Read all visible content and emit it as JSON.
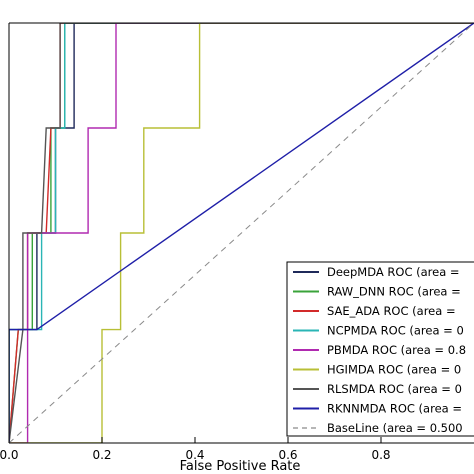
{
  "chart_data": {
    "type": "line",
    "title": "",
    "xlabel": "False Positive Rate",
    "ylabel": "",
    "xlim": [
      0,
      1
    ],
    "ylim": [
      0,
      1
    ],
    "x_ticks": [
      {
        "value": 0.0,
        "label": "0.0"
      },
      {
        "value": 0.2,
        "label": "0.2"
      },
      {
        "value": 0.4,
        "label": "0.4"
      },
      {
        "value": 0.6,
        "label": "0.6"
      },
      {
        "value": 0.8,
        "label": "0.8"
      }
    ],
    "grid": false,
    "legend_position": "bottom-right",
    "series": [
      {
        "name": "DeepMDA ROC (area =",
        "color": "#1f2a5a",
        "style": "solid",
        "x": [
          0.0,
          0.0,
          0.06,
          0.06,
          0.1,
          0.1,
          0.14,
          0.14,
          1.0
        ],
        "y": [
          0.0,
          0.27,
          0.27,
          0.5,
          0.5,
          0.75,
          0.75,
          1.0,
          1.0
        ]
      },
      {
        "name": "RAW_DNN ROC (area =",
        "color": "#3aa33a",
        "style": "solid",
        "x": [
          0.0,
          0.02,
          0.05,
          0.05,
          0.09,
          0.09,
          0.12,
          0.12,
          1.0
        ],
        "y": [
          0.0,
          0.27,
          0.27,
          0.5,
          0.5,
          0.75,
          0.75,
          1.0,
          1.0
        ]
      },
      {
        "name": "SAE_ADA ROC (area =",
        "color": "#d22a2a",
        "style": "solid",
        "x": [
          0.0,
          0.02,
          0.04,
          0.04,
          0.08,
          0.09,
          0.11,
          0.11,
          1.0
        ],
        "y": [
          0.0,
          0.27,
          0.27,
          0.5,
          0.5,
          0.75,
          0.75,
          1.0,
          1.0
        ]
      },
      {
        "name": "NCPMDA ROC (area = 0",
        "color": "#2ab5b5",
        "style": "solid",
        "x": [
          0.0,
          0.0,
          0.07,
          0.07,
          0.1,
          0.1,
          0.12,
          0.12,
          1.0
        ],
        "y": [
          0.0,
          0.27,
          0.27,
          0.5,
          0.5,
          0.75,
          0.75,
          1.0,
          1.0
        ]
      },
      {
        "name": "PBMDA ROC (area = 0.8",
        "color": "#b02ab0",
        "style": "solid",
        "x": [
          0.0,
          0.04,
          0.04,
          0.17,
          0.17,
          0.23,
          0.23,
          1.0
        ],
        "y": [
          0.0,
          0.0,
          0.5,
          0.5,
          0.75,
          0.75,
          1.0,
          1.0
        ]
      },
      {
        "name": "HGIMDA ROC (area = 0",
        "color": "#b8bf36",
        "style": "solid",
        "x": [
          0.0,
          0.02,
          0.2,
          0.2,
          0.24,
          0.24,
          0.29,
          0.29,
          0.41,
          0.41,
          1.0
        ],
        "y": [
          0.0,
          0.0,
          0.0,
          0.27,
          0.27,
          0.5,
          0.5,
          0.75,
          0.75,
          1.0,
          1.0
        ]
      },
      {
        "name": "RLSMDA ROC (area = 0",
        "color": "#555555",
        "style": "solid",
        "x": [
          0.0,
          0.03,
          0.03,
          0.07,
          0.08,
          0.11,
          0.11,
          1.0
        ],
        "y": [
          0.0,
          0.27,
          0.5,
          0.5,
          0.75,
          0.75,
          1.0,
          1.0
        ]
      },
      {
        "name": "RKNNMDA ROC (area =",
        "color": "#1f1fa8",
        "style": "solid",
        "x": [
          0.0,
          0.0,
          0.06,
          1.0
        ],
        "y": [
          0.0,
          0.27,
          0.27,
          1.0
        ]
      },
      {
        "name": "BaseLine (area = 0.500",
        "color": "#8a8a8a",
        "style": "dashed",
        "x": [
          0.0,
          1.0
        ],
        "y": [
          0.0,
          1.0
        ]
      }
    ]
  }
}
